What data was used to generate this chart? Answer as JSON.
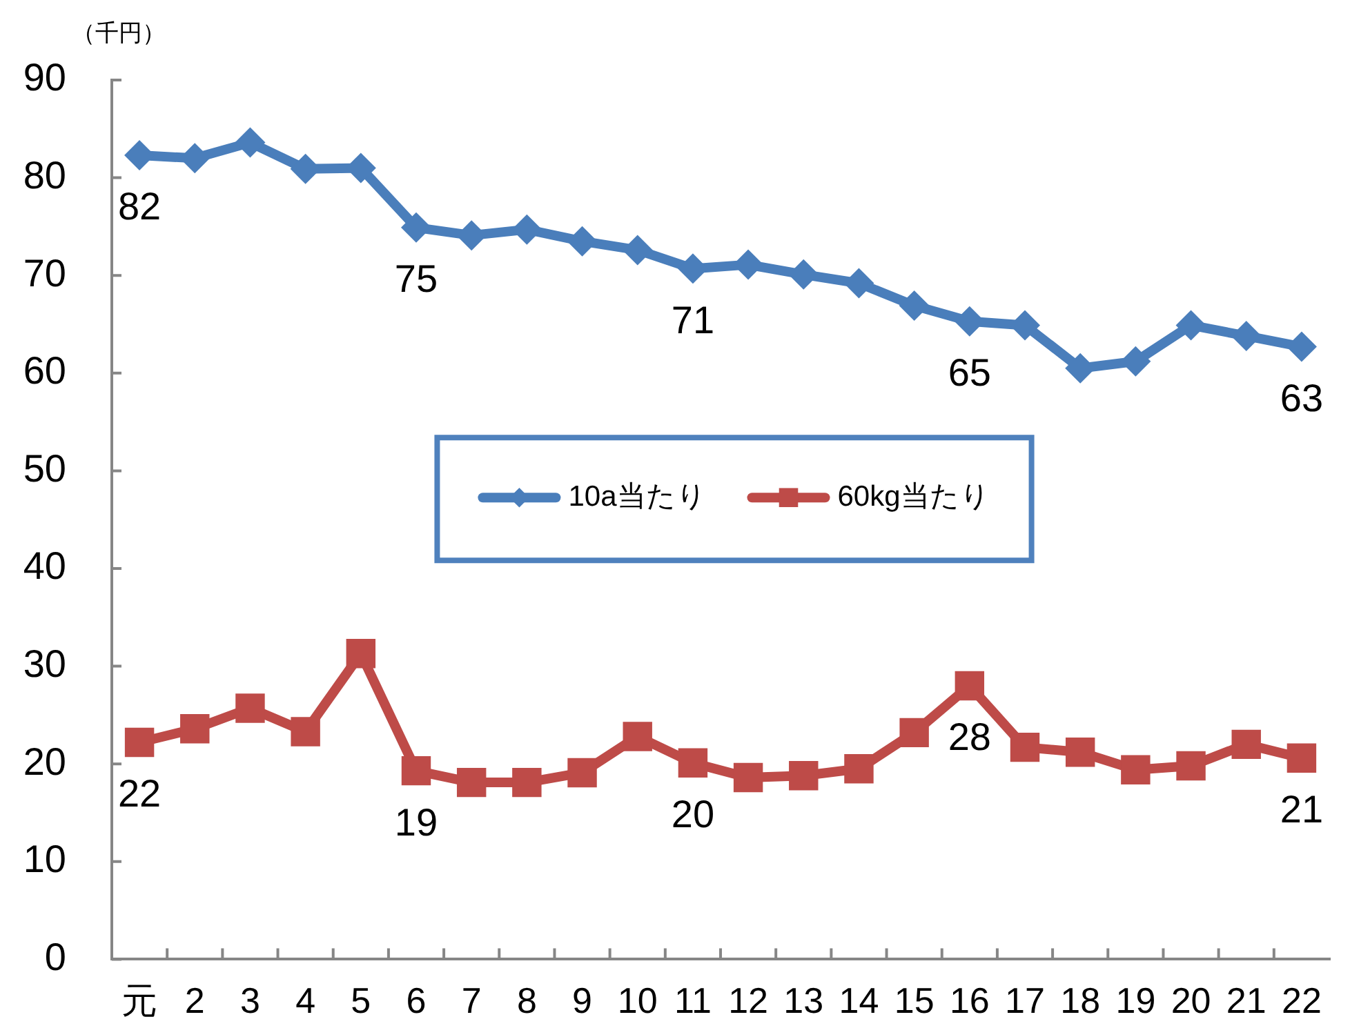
{
  "chart_data": {
    "type": "line",
    "ylabel": "（千円）",
    "categories": [
      "元",
      "2",
      "3",
      "4",
      "5",
      "6",
      "7",
      "8",
      "9",
      "10",
      "11",
      "12",
      "13",
      "14",
      "15",
      "16",
      "17",
      "18",
      "19",
      "20",
      "21",
      "22"
    ],
    "series": [
      {
        "name": "10a当たり",
        "color": "#4a7ebb",
        "marker": "diamond",
        "values": [
          82.3,
          82.0,
          83.6,
          80.9,
          81.0,
          74.9,
          74.1,
          74.7,
          73.5,
          72.6,
          70.7,
          71.1,
          70.1,
          69.2,
          66.9,
          65.3,
          64.9,
          60.5,
          61.2,
          64.9,
          63.8,
          62.7
        ],
        "value_labels": [
          "82",
          null,
          null,
          null,
          null,
          "75",
          null,
          null,
          null,
          null,
          "71",
          null,
          null,
          null,
          null,
          "65",
          null,
          null,
          null,
          null,
          null,
          "63"
        ]
      },
      {
        "name": "60kg当たり",
        "color": "#be4b48",
        "marker": "square",
        "values": [
          22.2,
          23.6,
          25.7,
          23.3,
          31.3,
          19.3,
          18.1,
          18.1,
          19.1,
          22.8,
          20.1,
          18.6,
          18.8,
          19.5,
          23.2,
          28.0,
          21.7,
          21.2,
          19.4,
          19.8,
          22.0,
          20.6
        ],
        "value_labels": [
          "22",
          null,
          null,
          null,
          null,
          "19",
          null,
          null,
          null,
          null,
          "20",
          null,
          null,
          null,
          null,
          "28",
          null,
          null,
          null,
          null,
          null,
          "21"
        ]
      }
    ],
    "ylim": [
      0,
      90
    ],
    "yticks": [
      0,
      10,
      20,
      30,
      40,
      50,
      60,
      70,
      80,
      90
    ],
    "legend": "center"
  }
}
